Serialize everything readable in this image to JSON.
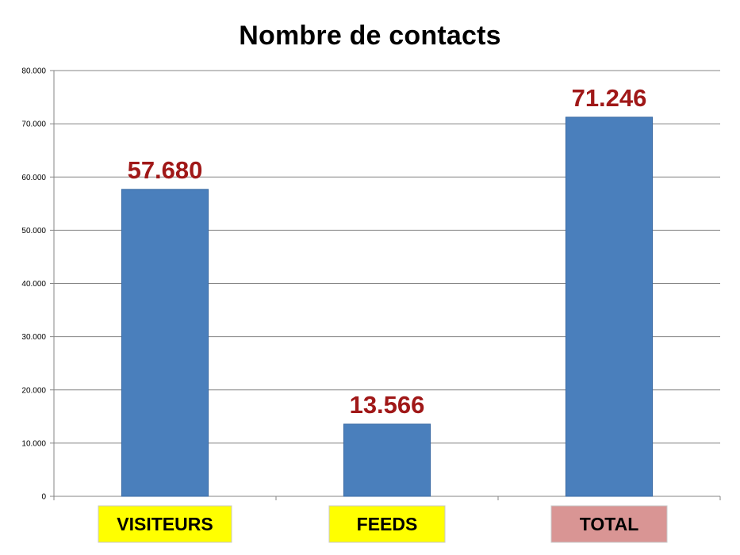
{
  "chart_data": {
    "type": "bar",
    "title": "Nombre de contacts",
    "xlabel": "",
    "ylabel": "",
    "categories": [
      "VISITEURS",
      "FEEDS",
      "TOTAL"
    ],
    "values": [
      57680,
      13566,
      71246
    ],
    "data_labels": [
      "57.680",
      "13.566",
      "71.246"
    ],
    "ylim": [
      0,
      80000
    ],
    "yticks": [
      0,
      10000,
      20000,
      30000,
      40000,
      50000,
      60000,
      70000,
      80000
    ],
    "ytick_labels": [
      "0",
      "10.000",
      "20.000",
      "30.000",
      "40.000",
      "50.000",
      "60.000",
      "70.000",
      "80.000"
    ],
    "grid": true,
    "legend": "none",
    "colors": {
      "bar": "#4a7fbc",
      "bar_edge": "#3a6aa3",
      "data_label": "#a01818",
      "category_box": [
        "#ffff00",
        "#ffff00",
        "#d99594"
      ],
      "grid": "#868686"
    }
  }
}
